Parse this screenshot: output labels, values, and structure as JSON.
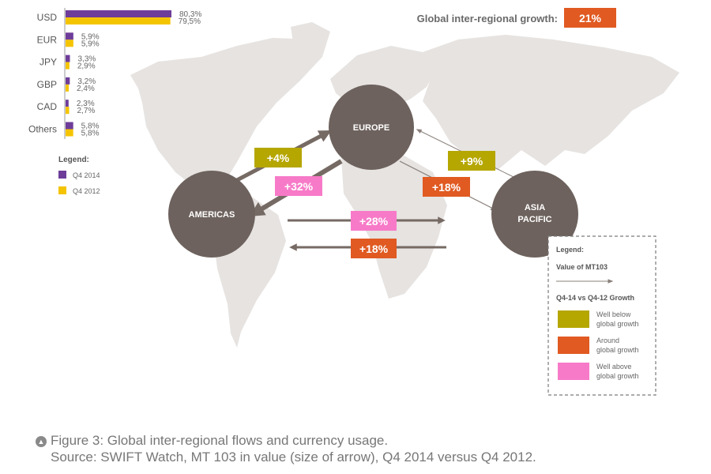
{
  "chart_data": {
    "type": "bar",
    "categories": [
      "USD",
      "EUR",
      "JPY",
      "GBP",
      "CAD",
      "Others"
    ],
    "series": [
      {
        "name": "Q4 2014",
        "values": [
          80.3,
          5.9,
          3.3,
          3.2,
          2.3,
          5.8
        ],
        "labels": [
          "80,3%",
          "5,9%",
          "3,3%",
          "3,2%",
          "2,3%",
          "5,8%"
        ]
      },
      {
        "name": "Q4 2012",
        "values": [
          79.5,
          5.9,
          2.9,
          2.4,
          2.7,
          5.8
        ],
        "labels": [
          "79,5%",
          "5,9%",
          "2,9%",
          "2,4%",
          "2,7%",
          "5,8%"
        ]
      }
    ],
    "legend_title": "Legend:",
    "colors": {
      "q4_2014": "#6e3d9a",
      "q4_2012": "#f5c400"
    }
  },
  "global_growth": {
    "label": "Global inter-regional growth:",
    "value": "21%"
  },
  "regions": {
    "europe": "EUROPE",
    "americas": "AMERICAS",
    "asia_line1": "ASIA",
    "asia_line2": "PACIFIC"
  },
  "flows": {
    "americas_to_europe": "+4%",
    "europe_to_americas": "+32%",
    "asia_to_europe": "+9%",
    "europe_to_asia": "+18%",
    "americas_to_asia": "+28%",
    "asia_to_americas": "+18%"
  },
  "map_legend": {
    "title": "Legend:",
    "value_label": "Value of MT103",
    "growth_title": "Q4-14 vs Q4-12 Growth",
    "items": [
      {
        "line1": "Well below",
        "line2": "global growth",
        "color": "#b5a600"
      },
      {
        "line1": "Around",
        "line2": "global growth",
        "color": "#e05a22"
      },
      {
        "line1": "Well above",
        "line2": "global growth",
        "color": "#f77ac8"
      }
    ]
  },
  "caption": {
    "line1": "Figure 3: Global inter-regional flows and currency usage.",
    "line2": "Source: SWIFT Watch, MT 103 in value (size of arrow), Q4 2014 versus Q4 2012."
  },
  "colors": {
    "circle": "#6d625d",
    "arrow": "#766a64",
    "map": "#e6e3e1"
  }
}
